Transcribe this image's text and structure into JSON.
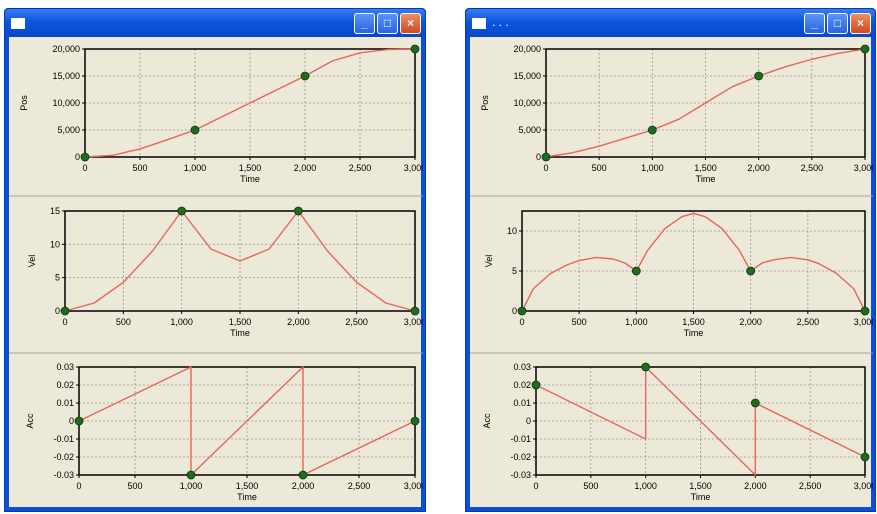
{
  "windows": [
    {
      "title": "",
      "chart_data": [
        {
          "type": "line",
          "xlabel": "Time",
          "ylabel": "Pos",
          "xlim": [
            0,
            3000
          ],
          "ylim": [
            0,
            20000
          ],
          "x_ticks": [
            "0",
            "500",
            "1,000",
            "1,500",
            "2,000",
            "2,500",
            "3,000"
          ],
          "y_ticks": [
            "0",
            "5,000",
            "10,000",
            "15,000",
            "20,000"
          ],
          "series": [
            {
              "x": [
                0,
                250,
                500,
                750,
                1000,
                1250,
                1500,
                1750,
                2000,
                2250,
                2500,
                2750,
                3000
              ],
              "y": [
                0,
                300,
                1500,
                3200,
                5000,
                7500,
                10000,
                12500,
                15000,
                17800,
                19300,
                19900,
                20000
              ]
            }
          ],
          "points": [
            {
              "x": 0,
              "y": 0
            },
            {
              "x": 1000,
              "y": 5000
            },
            {
              "x": 2000,
              "y": 15000
            },
            {
              "x": 3000,
              "y": 20000
            }
          ]
        },
        {
          "type": "line",
          "xlabel": "Time",
          "ylabel": "Vel",
          "xlim": [
            0,
            3000
          ],
          "ylim": [
            0,
            15
          ],
          "x_ticks": [
            "0",
            "500",
            "1,000",
            "1,500",
            "2,000",
            "2,500",
            "3,000"
          ],
          "y_ticks": [
            "0",
            "5",
            "10",
            "15"
          ],
          "series": [
            {
              "x": [
                0,
                250,
                500,
                750,
                1000,
                1250,
                1500,
                1750,
                2000,
                2250,
                2500,
                2750,
                3000
              ],
              "y": [
                0,
                1.2,
                4.3,
                9,
                15,
                9.3,
                7.5,
                9.3,
                15,
                9,
                4.3,
                1.2,
                0
              ]
            }
          ],
          "points": [
            {
              "x": 0,
              "y": 0
            },
            {
              "x": 1000,
              "y": 15
            },
            {
              "x": 2000,
              "y": 15
            },
            {
              "x": 3000,
              "y": 0
            }
          ]
        },
        {
          "type": "line",
          "xlabel": "Time",
          "ylabel": "Acc",
          "xlim": [
            0,
            3000
          ],
          "ylim": [
            -0.03,
            0.03
          ],
          "x_ticks": [
            "0",
            "500",
            "1,000",
            "1,500",
            "2,000",
            "2,500",
            "3,000"
          ],
          "y_ticks": [
            "0.03",
            "0.02",
            "0.01",
            "0",
            "-0.01",
            "-0.02",
            "-0.03"
          ],
          "series": [
            {
              "x": [
                0,
                1000,
                1000,
                2000,
                2000,
                3000
              ],
              "y": [
                0,
                0.03,
                -0.03,
                0.03,
                -0.03,
                0
              ]
            }
          ],
          "points": [
            {
              "x": 0,
              "y": 0
            },
            {
              "x": 1000,
              "y": -0.03
            },
            {
              "x": 2000,
              "y": -0.03
            },
            {
              "x": 3000,
              "y": 0
            }
          ]
        }
      ]
    },
    {
      "title": ". . .",
      "chart_data": [
        {
          "type": "line",
          "xlabel": "Time",
          "ylabel": "Pos",
          "xlim": [
            0,
            3000
          ],
          "ylim": [
            0,
            20000
          ],
          "x_ticks": [
            "0",
            "500",
            "1,000",
            "1,500",
            "2,000",
            "2,500",
            "3,000"
          ],
          "y_ticks": [
            "0",
            "5,000",
            "10,000",
            "15,000",
            "20,000"
          ],
          "series": [
            {
              "x": [
                0,
                250,
                500,
                750,
                1000,
                1250,
                1500,
                1750,
                2000,
                2250,
                2500,
                2750,
                3000
              ],
              "y": [
                0,
                800,
                2000,
                3500,
                5000,
                7000,
                10000,
                13000,
                15000,
                16700,
                18100,
                19200,
                20000
              ]
            }
          ],
          "points": [
            {
              "x": 0,
              "y": 0
            },
            {
              "x": 1000,
              "y": 5000
            },
            {
              "x": 2000,
              "y": 15000
            },
            {
              "x": 3000,
              "y": 20000
            }
          ]
        },
        {
          "type": "line",
          "xlabel": "Time",
          "ylabel": "Vel",
          "xlim": [
            0,
            3000
          ],
          "ylim": [
            0,
            12.5
          ],
          "x_ticks": [
            "0",
            "500",
            "1,000",
            "1,500",
            "2,000",
            "2,500",
            "3,000"
          ],
          "y_ticks": [
            "0",
            "5",
            "10"
          ],
          "series": [
            {
              "x": [
                0,
                100,
                250,
                400,
                500,
                650,
                800,
                900,
                1000,
                1100,
                1250,
                1400,
                1500,
                1600,
                1750,
                1900,
                2000,
                2100,
                2200,
                2350,
                2500,
                2600,
                2750,
                2900,
                3000
              ],
              "y": [
                0,
                2.8,
                4.7,
                5.8,
                6.3,
                6.7,
                6.5,
                6.0,
                5,
                7.6,
                10.3,
                11.8,
                12.2,
                11.8,
                10.3,
                7.6,
                5,
                6.0,
                6.4,
                6.7,
                6.4,
                5.9,
                4.7,
                2.8,
                0
              ]
            }
          ],
          "points": [
            {
              "x": 0,
              "y": 0
            },
            {
              "x": 1000,
              "y": 5
            },
            {
              "x": 2000,
              "y": 5
            },
            {
              "x": 3000,
              "y": 0
            }
          ]
        },
        {
          "type": "line",
          "xlabel": "Time",
          "ylabel": "Acc",
          "xlim": [
            0,
            3000
          ],
          "ylim": [
            -0.03,
            0.03
          ],
          "x_ticks": [
            "0",
            "500",
            "1,000",
            "1,500",
            "2,000",
            "2,500",
            "3,000"
          ],
          "y_ticks": [
            "0.03",
            "0.02",
            "0.01",
            "0",
            "-0.01",
            "-0.02",
            "-0.03"
          ],
          "series": [
            {
              "x": [
                0,
                1000,
                1000,
                2000,
                2000,
                3000
              ],
              "y": [
                0.02,
                -0.01,
                0.03,
                -0.03,
                0.01,
                -0.02
              ]
            }
          ],
          "points": [
            {
              "x": 0,
              "y": 0.02
            },
            {
              "x": 1000,
              "y": 0.03
            },
            {
              "x": 2000,
              "y": 0.01
            },
            {
              "x": 3000,
              "y": -0.02
            }
          ]
        }
      ]
    }
  ]
}
